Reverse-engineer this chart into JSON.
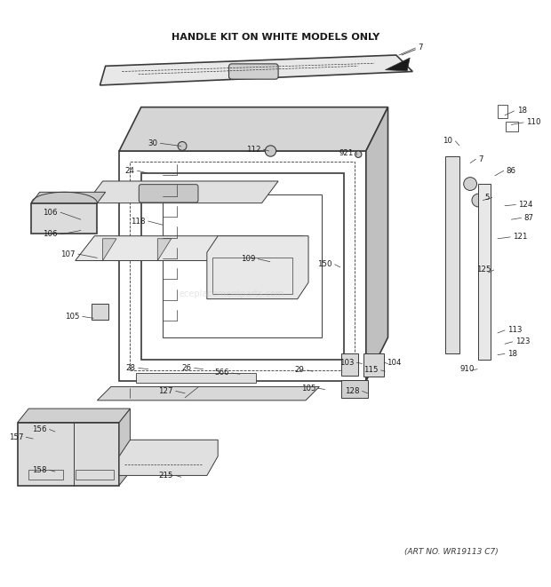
{
  "title": "HANDLE KIT ON WHITE MODELS ONLY",
  "art_no": "(ART NO. WR19113 C7)",
  "bg_color": "#ffffff",
  "line_color": "#3a3a3a",
  "watermark": "eceplacementparts.com"
}
